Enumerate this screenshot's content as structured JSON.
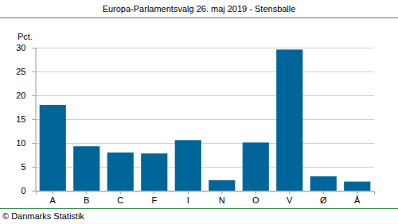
{
  "chart_data": {
    "type": "bar",
    "title": "Europa-Parlamentsvalg 26. maj 2019 - Stensballe",
    "ylabel": "Pct.",
    "source": "© Danmarks Statistik",
    "categories": [
      "A",
      "B",
      "C",
      "F",
      "I",
      "N",
      "O",
      "V",
      "Ø",
      "Å"
    ],
    "values": [
      18.0,
      9.3,
      8.0,
      7.8,
      10.6,
      2.2,
      10.1,
      29.6,
      3.0,
      1.9
    ],
    "color": "#00669a",
    "ylim": [
      0,
      30
    ],
    "yticks": [
      0,
      5,
      10,
      15,
      20,
      25,
      30
    ],
    "grid": true
  }
}
